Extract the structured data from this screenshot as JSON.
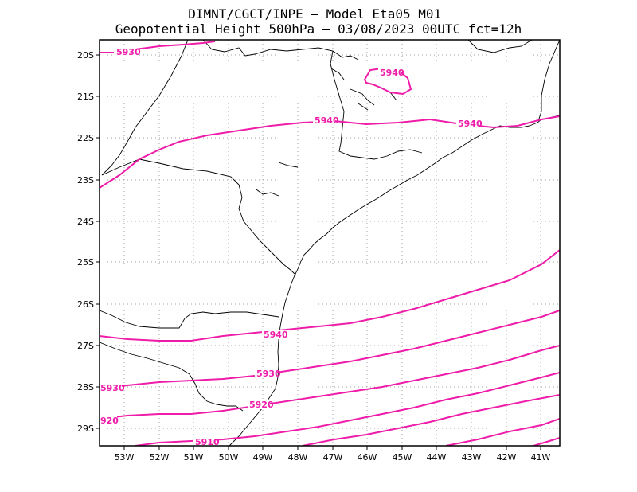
{
  "title_line1": "DIMNT/CGCT/INPE –  Model Eta05_M01_",
  "title_line2": "Geopotential Height 500hPa –  03/08/2023 00UTC fct=12h",
  "lat_labels": [
    "20S",
    "21S",
    "22S",
    "23S",
    "24S",
    "25S",
    "26S",
    "27S",
    "28S",
    "29S"
  ],
  "lon_labels": [
    "53W",
    "52W",
    "51W",
    "50W",
    "49W",
    "48W",
    "47W",
    "46W",
    "45W",
    "44W",
    "43W",
    "42W",
    "41W"
  ],
  "contour_labels": [
    "5930",
    "5940",
    "5940",
    "5940",
    "5940",
    "5930",
    "5930",
    "5920",
    "920",
    "5910"
  ],
  "colors": {
    "contour": "#ee1ca8",
    "coast": "#000000",
    "grid": "#a0a0a0"
  }
}
